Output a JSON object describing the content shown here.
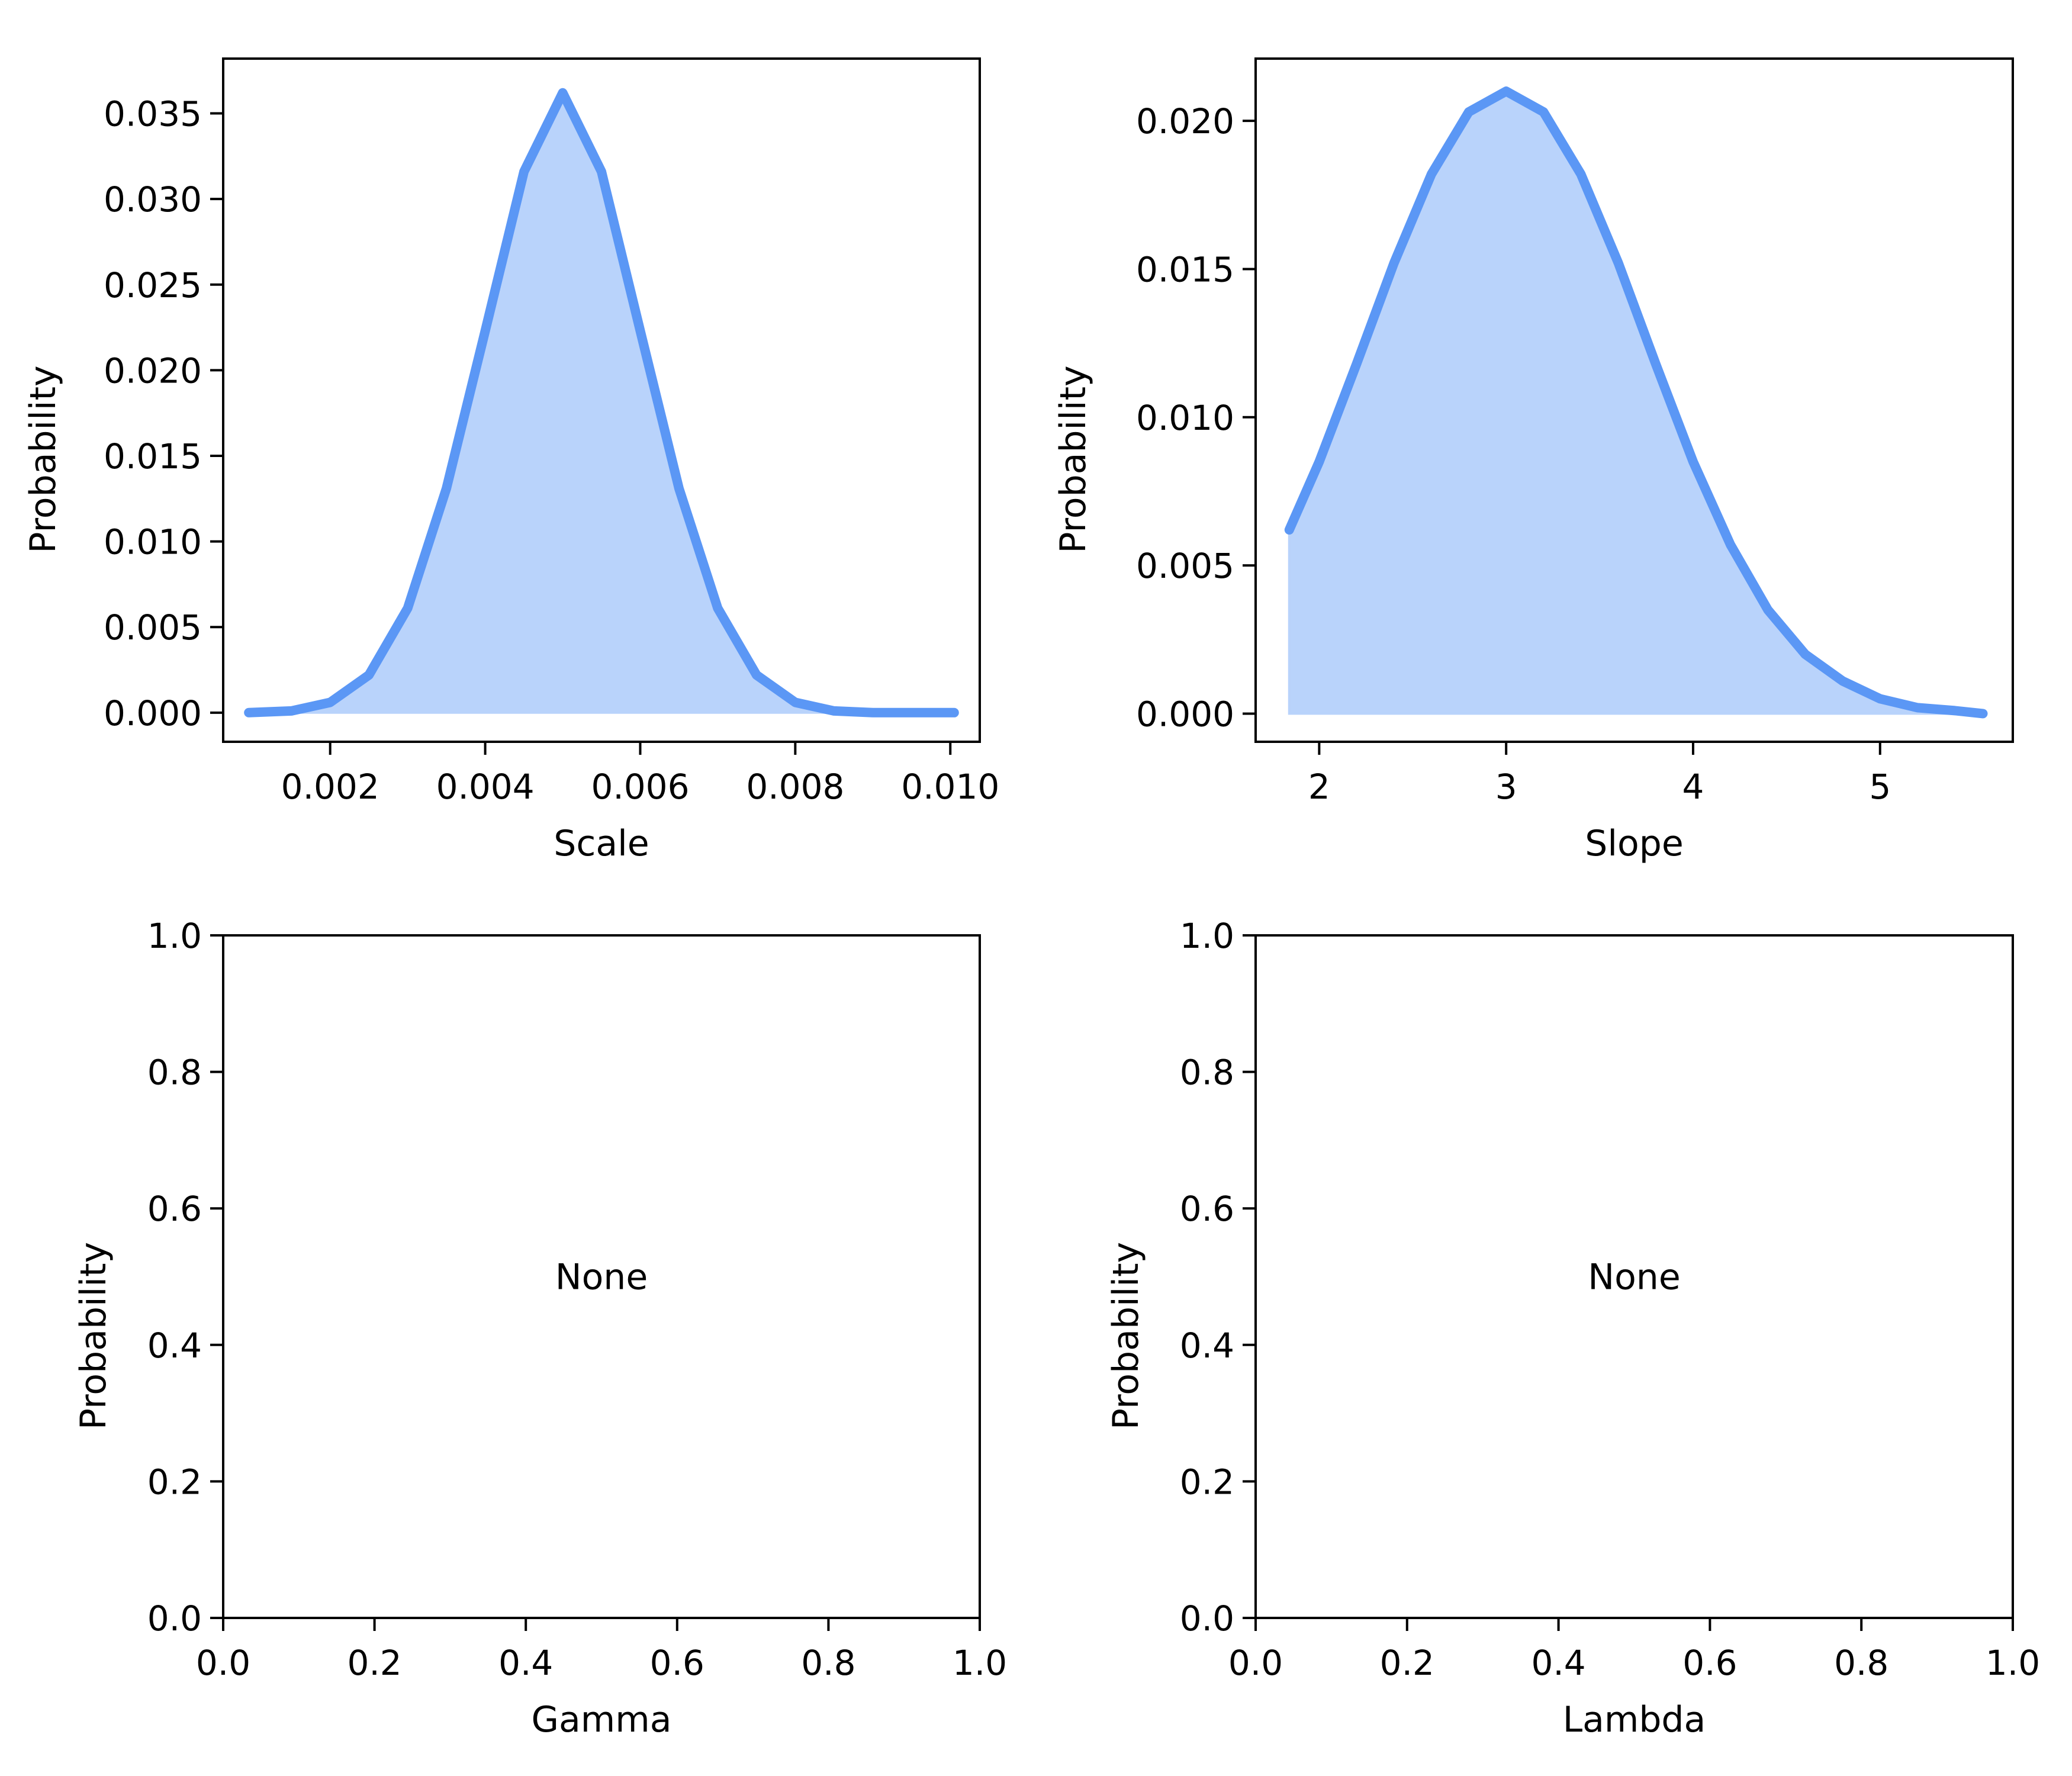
{
  "chart_data": [
    {
      "type": "area",
      "xlabel": "Scale",
      "ylabel": "Probability",
      "xlim": [
        0.00062,
        0.01038
      ],
      "ylim": [
        -0.0017,
        0.0382
      ],
      "xticks": [
        0.002,
        0.004,
        0.006,
        0.008,
        0.01
      ],
      "xtick_labels": [
        "0.002",
        "0.004",
        "0.006",
        "0.008",
        "0.010"
      ],
      "yticks": [
        0.0,
        0.005,
        0.01,
        0.015,
        0.02,
        0.025,
        0.03,
        0.035
      ],
      "ytick_labels": [
        "0.000",
        "0.005",
        "0.010",
        "0.015",
        "0.020",
        "0.025",
        "0.030",
        "0.035"
      ],
      "grid": false,
      "x": [
        0.00095,
        0.0015,
        0.002,
        0.0025,
        0.003,
        0.0035,
        0.004,
        0.0045,
        0.005,
        0.0055,
        0.006,
        0.0065,
        0.007,
        0.0075,
        0.008,
        0.0085,
        0.009,
        0.0095,
        0.01005
      ],
      "y": [
        0.0,
        0.0001,
        0.0006,
        0.0022,
        0.0061,
        0.0131,
        0.0223,
        0.0316,
        0.0362,
        0.0316,
        0.0223,
        0.0131,
        0.0061,
        0.0022,
        0.0006,
        0.0001,
        0.0,
        0.0,
        0.0
      ],
      "line_color": "#5b97f5",
      "fill_color": "#b9d3fb"
    },
    {
      "type": "area",
      "xlabel": "Slope",
      "ylabel": "Probability",
      "xlim": [
        1.66,
        5.71
      ],
      "ylim": [
        -0.00095,
        0.0221
      ],
      "xticks": [
        2,
        3,
        4,
        5
      ],
      "xtick_labels": [
        "2",
        "3",
        "4",
        "5"
      ],
      "yticks": [
        0.0,
        0.005,
        0.01,
        0.015,
        0.02
      ],
      "ytick_labels": [
        "0.000",
        "0.005",
        "0.010",
        "0.015",
        "0.020"
      ],
      "grid": false,
      "x": [
        1.84,
        2.0,
        2.2,
        2.4,
        2.6,
        2.8,
        3.0,
        3.2,
        3.4,
        3.6,
        3.8,
        4.0,
        4.2,
        4.4,
        4.6,
        4.8,
        5.0,
        5.2,
        5.4,
        5.55
      ],
      "y": [
        0.0062,
        0.0085,
        0.0118,
        0.0152,
        0.0182,
        0.0203,
        0.021,
        0.0203,
        0.0182,
        0.0152,
        0.0118,
        0.0085,
        0.0057,
        0.0035,
        0.002,
        0.0011,
        0.0005,
        0.0002,
        0.0001,
        0.0
      ],
      "line_color": "#5b97f5",
      "fill_color": "#b9d3fb"
    },
    {
      "type": "area",
      "xlabel": "Gamma",
      "ylabel": "Probability",
      "xlim": [
        0.0,
        1.0
      ],
      "ylim": [
        0.0,
        1.0
      ],
      "xticks": [
        0.0,
        0.2,
        0.4,
        0.6,
        0.8,
        1.0
      ],
      "xtick_labels": [
        "0.0",
        "0.2",
        "0.4",
        "0.6",
        "0.8",
        "1.0"
      ],
      "yticks": [
        0.0,
        0.2,
        0.4,
        0.6,
        0.8,
        1.0
      ],
      "ytick_labels": [
        "0.0",
        "0.2",
        "0.4",
        "0.6",
        "0.8",
        "1.0"
      ],
      "grid": false,
      "x": [],
      "y": [],
      "annotation": "None"
    },
    {
      "type": "area",
      "xlabel": "Lambda",
      "ylabel": "Probability",
      "xlim": [
        0.0,
        1.0
      ],
      "ylim": [
        0.0,
        1.0
      ],
      "xticks": [
        0.0,
        0.2,
        0.4,
        0.6,
        0.8,
        1.0
      ],
      "xtick_labels": [
        "0.0",
        "0.2",
        "0.4",
        "0.6",
        "0.8",
        "1.0"
      ],
      "yticks": [
        0.0,
        0.2,
        0.4,
        0.6,
        0.8,
        1.0
      ],
      "ytick_labels": [
        "0.0",
        "0.2",
        "0.4",
        "0.6",
        "0.8",
        "1.0"
      ],
      "grid": false,
      "x": [],
      "y": [],
      "annotation": "None"
    }
  ]
}
